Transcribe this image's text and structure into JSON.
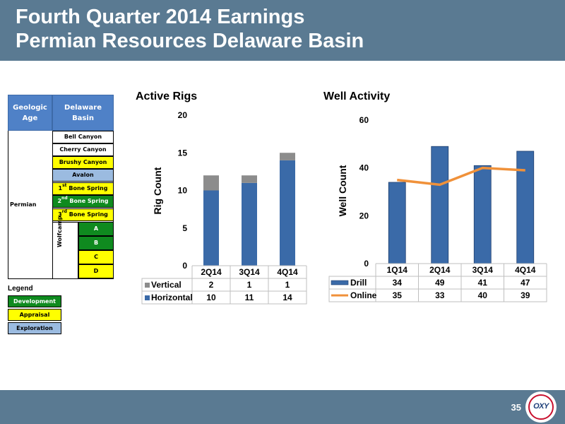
{
  "header": {
    "title_line1": "Fourth Quarter 2014 Earnings",
    "title_line2": "Permian Resources Delaware Basin"
  },
  "footer": {
    "page_number": "35",
    "logo_text": "OXY"
  },
  "stratigraphy": {
    "header_age": "Geologic Age",
    "header_basin": "Delaware Basin",
    "age_label": "Permian",
    "layers": [
      {
        "label": "Bell Canyon",
        "color": "white"
      },
      {
        "label": "Cherry Canyon",
        "color": "white"
      },
      {
        "label": "Brushy Canyon",
        "color": "yellow"
      },
      {
        "label": "Avalon",
        "color": "blue"
      },
      {
        "label": "Bone Spring",
        "ordinal": "1",
        "suffix": "st",
        "color": "yellow"
      },
      {
        "label": "Bone Spring",
        "ordinal": "2",
        "suffix": "nd",
        "color": "green"
      },
      {
        "label": "Bone Spring",
        "ordinal": "3",
        "suffix": "rd",
        "color": "yellow"
      }
    ],
    "wolfcamp_label": "Wolfcamp",
    "wolfcamp_sublayers": [
      {
        "label": "A",
        "color": "green"
      },
      {
        "label": "B",
        "color": "green"
      },
      {
        "label": "C",
        "color": "yellow"
      },
      {
        "label": "D",
        "color": "yellow"
      }
    ]
  },
  "legend": {
    "title": "Legend",
    "items": [
      {
        "label": "Development",
        "color": "green"
      },
      {
        "label": "Appraisal",
        "color": "yellow"
      },
      {
        "label": "Exploration",
        "color": "blue"
      }
    ]
  },
  "colors": {
    "header_bg": "#5a7a92",
    "stratum_green": "#0f8a1f",
    "stratum_yellow": "#ffff00",
    "stratum_blue": "#9bbbe0",
    "bar_blue": "#3a6aa8",
    "bar_gray": "#8c8c8c",
    "line_orange": "#f0913a"
  },
  "chart_data": [
    {
      "type": "bar",
      "stacked": true,
      "title": "Active Rigs",
      "ylabel": "Rig Count",
      "ylim": [
        0,
        20
      ],
      "yticks": [
        0,
        5,
        10,
        15,
        20
      ],
      "categories": [
        "2Q14",
        "3Q14",
        "4Q14"
      ],
      "series": [
        {
          "name": "Vertical",
          "values": [
            2,
            1,
            1
          ],
          "color": "#8c8c8c"
        },
        {
          "name": "Horizontal",
          "values": [
            10,
            11,
            14
          ],
          "color": "#3a6aa8"
        }
      ],
      "data_table": true
    },
    {
      "type": "bar",
      "title": "Well Activity",
      "ylabel": "Well Count",
      "ylim": [
        0,
        60
      ],
      "yticks": [
        0,
        20,
        40,
        60
      ],
      "categories": [
        "1Q14",
        "2Q14",
        "3Q14",
        "4Q14"
      ],
      "series": [
        {
          "name": "Drill",
          "values": [
            34,
            49,
            41,
            47
          ],
          "color": "#3a6aa8",
          "kind": "bar"
        },
        {
          "name": "Online",
          "values": [
            35,
            33,
            40,
            39
          ],
          "color": "#f0913a",
          "kind": "line"
        }
      ],
      "data_table": true
    }
  ]
}
